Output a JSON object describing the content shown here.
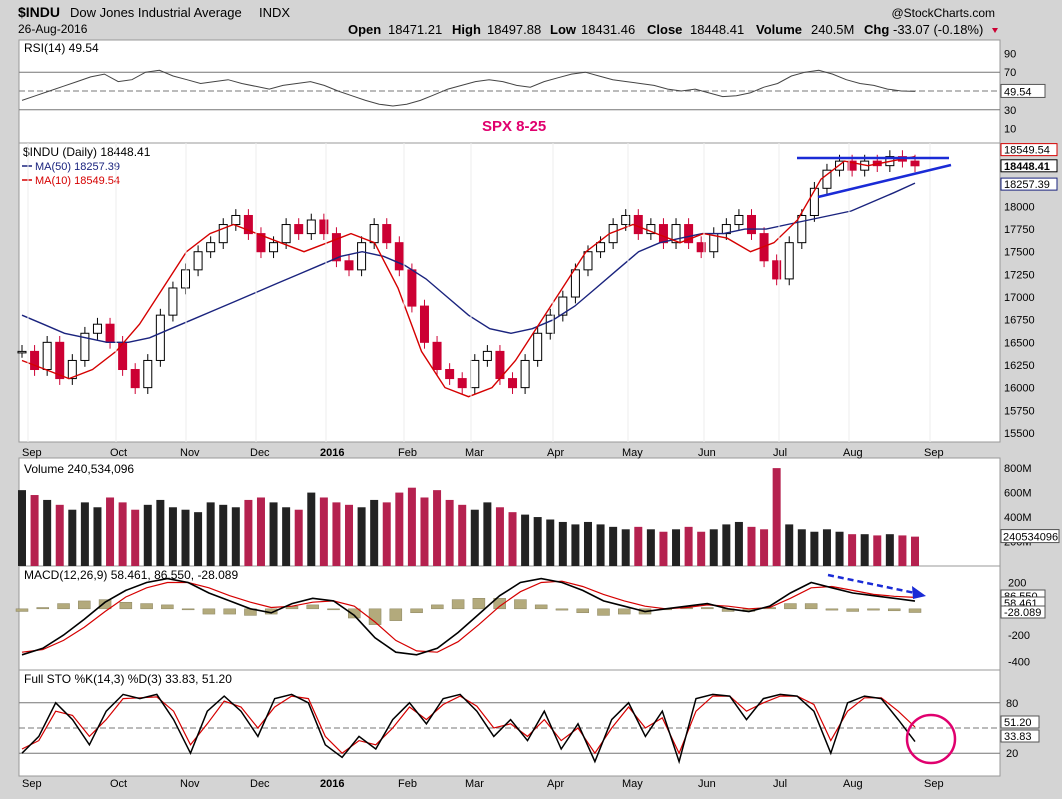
{
  "header": {
    "symbol": "$INDU",
    "name": "Dow Jones Industrial Average",
    "exchange": "INDX",
    "date": "26-Aug-2016",
    "source": "@StockCharts.com",
    "quote": {
      "open_label": "Open",
      "open": "18471.21",
      "high_label": "High",
      "high": "18497.88",
      "low_label": "Low",
      "low": "18431.46",
      "close_label": "Close",
      "close": "18448.41",
      "volume_label": "Volume",
      "volume": "240.5M",
      "chg_label": "Chg",
      "chg": "-33.07 (-0.18%)"
    }
  },
  "colors": {
    "up": "#000000",
    "down": "#cc0033",
    "ma50": "#1a237e",
    "ma10": "#d50000",
    "annotation_text": "#e0006e",
    "trendline": "#1a2bd6",
    "circle": "#e0006e",
    "panel_bg": "#ffffff",
    "outer_bg": "#d4d4d4"
  },
  "annotation": {
    "text": "SPX 8-25"
  },
  "chart_data": [
    {
      "type": "line",
      "panel": "rsi",
      "label": "RSI(14) 49.54",
      "last_value_label": "49.54",
      "ylim": [
        0,
        100
      ],
      "ticks": [
        "90",
        "70",
        "50",
        "30",
        "10"
      ],
      "levels": [
        70,
        30
      ],
      "series": [
        {
          "name": "RSI(14)",
          "values": [
            40,
            45,
            50,
            55,
            60,
            65,
            68,
            60,
            62,
            70,
            72,
            66,
            62,
            58,
            60,
            62,
            58,
            55,
            52,
            56,
            58,
            60,
            56,
            50,
            45,
            40,
            36,
            34,
            36,
            40,
            46,
            52,
            56,
            60,
            62,
            60,
            56,
            54,
            60,
            64,
            68,
            70,
            66,
            62,
            60,
            58,
            56,
            52,
            50,
            52,
            48,
            44,
            45,
            48,
            54,
            58,
            66,
            70,
            72,
            68,
            62,
            58,
            56,
            52,
            50,
            49.54
          ]
        }
      ]
    },
    {
      "type": "candlestick",
      "panel": "price",
      "label": "$INDU (Daily) 18448.41",
      "ma50_label": "MA(50) 18257.39",
      "ma10_label": "MA(10) 18549.54",
      "right_labels": [
        "18549.54",
        "18448.41",
        "18257.39"
      ],
      "ylim": [
        15400,
        18700
      ],
      "ticks": [
        "18000",
        "17750",
        "17500",
        "17250",
        "17000",
        "16750",
        "16500",
        "16250",
        "16000",
        "15750",
        "15500"
      ],
      "x_labels": [
        "Sep",
        "Oct",
        "Nov",
        "Dec",
        "2016",
        "Feb",
        "Mar",
        "Apr",
        "May",
        "Jun",
        "Jul",
        "Aug",
        "Sep"
      ],
      "closes": [
        16400,
        16200,
        16500,
        16100,
        16300,
        16600,
        16700,
        16500,
        16200,
        16000,
        16300,
        16800,
        17100,
        17300,
        17500,
        17600,
        17800,
        17900,
        17700,
        17500,
        17600,
        17800,
        17700,
        17850,
        17700,
        17400,
        17300,
        17600,
        17800,
        17600,
        17300,
        16900,
        16500,
        16200,
        16100,
        16000,
        16300,
        16400,
        16100,
        16000,
        16300,
        16600,
        16800,
        17000,
        17300,
        17500,
        17600,
        17800,
        17900,
        17700,
        17800,
        17600,
        17800,
        17600,
        17500,
        17700,
        17800,
        17900,
        17700,
        17400,
        17200,
        17600,
        17900,
        18200,
        18400,
        18500,
        18400,
        18500,
        18450,
        18550,
        18500,
        18448.41
      ],
      "series": [
        {
          "name": "MA(50)",
          "values": [
            16800,
            16700,
            16600,
            16550,
            16500,
            16500,
            16550,
            16650,
            16750,
            16850,
            16950,
            17050,
            17150,
            17250,
            17350,
            17450,
            17500,
            17450,
            17350,
            17200,
            17000,
            16800,
            16650,
            16600,
            16650,
            16750,
            16900,
            17100,
            17300,
            17500,
            17600,
            17650,
            17700,
            17700,
            17750,
            17750,
            17800,
            17850,
            17900,
            17950,
            18050,
            18150,
            18257.39
          ]
        },
        {
          "name": "MA(10)",
          "values": [
            16300,
            16200,
            16100,
            16200,
            16400,
            16700,
            17100,
            17500,
            17700,
            17800,
            17700,
            17600,
            17500,
            17600,
            17700,
            17600,
            17100,
            16400,
            16000,
            15900,
            16000,
            16300,
            16700,
            17100,
            17500,
            17700,
            17800,
            17700,
            17600,
            17700,
            17650,
            17500,
            17600,
            17850,
            18300,
            18500,
            18450,
            18500,
            18549.54
          ]
        }
      ]
    },
    {
      "type": "bar",
      "panel": "volume",
      "label": "Volume 240,534,096",
      "last_value_label": "240534096",
      "ticks": [
        "800M",
        "600M",
        "400M",
        "200M"
      ],
      "ylim": [
        0,
        850
      ],
      "values": [
        620,
        580,
        540,
        500,
        460,
        520,
        480,
        560,
        520,
        460,
        500,
        540,
        480,
        460,
        440,
        520,
        500,
        480,
        540,
        560,
        520,
        480,
        460,
        600,
        560,
        520,
        500,
        480,
        540,
        520,
        600,
        640,
        560,
        620,
        540,
        500,
        460,
        520,
        480,
        440,
        420,
        400,
        380,
        360,
        340,
        360,
        340,
        320,
        300,
        320,
        300,
        280,
        300,
        320,
        280,
        300,
        340,
        360,
        320,
        300,
        800,
        340,
        300,
        280,
        300,
        280,
        260,
        260,
        250,
        260,
        250,
        240
      ]
    },
    {
      "type": "line",
      "panel": "macd",
      "label": "MACD(12,26,9) 58.461, 86.550, -28.089",
      "right_labels": [
        "86.550",
        "58.461",
        "-28.089"
      ],
      "ylim": [
        -450,
        280
      ],
      "ticks": [
        "200",
        "0",
        "-200",
        "-400"
      ],
      "series": [
        {
          "name": "MACD",
          "values": [
            -350,
            -300,
            -200,
            -80,
            50,
            140,
            200,
            230,
            200,
            120,
            60,
            0,
            -30,
            40,
            80,
            60,
            -50,
            -220,
            -330,
            -350,
            -300,
            -180,
            -40,
            100,
            200,
            230,
            200,
            140,
            60,
            20,
            -20,
            0,
            20,
            40,
            0,
            -20,
            20,
            120,
            200,
            160,
            120,
            100,
            80,
            58.461
          ]
        },
        {
          "name": "Signal",
          "values": [
            -330,
            -310,
            -240,
            -140,
            -20,
            90,
            160,
            200,
            200,
            160,
            100,
            50,
            10,
            20,
            50,
            60,
            20,
            -100,
            -240,
            -320,
            -330,
            -250,
            -120,
            20,
            130,
            200,
            210,
            170,
            110,
            60,
            20,
            0,
            10,
            30,
            20,
            0,
            10,
            80,
            160,
            170,
            140,
            110,
            95,
            86.55
          ]
        }
      ]
    },
    {
      "type": "line",
      "panel": "stochastic",
      "label": "Full STO %K(14,3) %D(3) 33.83, 51.20",
      "right_labels": [
        "51.20",
        "33.83"
      ],
      "ylim": [
        0,
        100
      ],
      "ticks": [
        "80",
        "20"
      ],
      "levels": [
        80,
        50,
        20
      ],
      "x_labels": [
        "Sep",
        "Oct",
        "Nov",
        "Dec",
        "2016",
        "Feb",
        "Mar",
        "Apr",
        "May",
        "Jun",
        "Jul",
        "Aug",
        "Sep"
      ],
      "series": [
        {
          "name": "%K",
          "values": [
            20,
            40,
            80,
            60,
            30,
            70,
            90,
            85,
            90,
            60,
            20,
            70,
            88,
            70,
            40,
            85,
            90,
            80,
            30,
            15,
            40,
            25,
            60,
            80,
            55,
            85,
            90,
            70,
            40,
            60,
            35,
            70,
            25,
            55,
            10,
            60,
            80,
            40,
            70,
            10,
            85,
            90,
            88,
            60,
            85,
            90,
            88,
            70,
            20,
            80,
            88,
            85,
            60,
            33.83
          ]
        },
        {
          "name": "%D",
          "values": [
            25,
            35,
            70,
            65,
            40,
            60,
            85,
            86,
            87,
            70,
            30,
            55,
            82,
            75,
            50,
            75,
            88,
            85,
            40,
            20,
            35,
            30,
            50,
            75,
            60,
            78,
            88,
            76,
            50,
            55,
            40,
            60,
            35,
            50,
            20,
            50,
            75,
            50,
            62,
            20,
            70,
            88,
            88,
            70,
            80,
            88,
            88,
            78,
            35,
            70,
            86,
            86,
            70,
            51.2
          ]
        }
      ]
    }
  ]
}
